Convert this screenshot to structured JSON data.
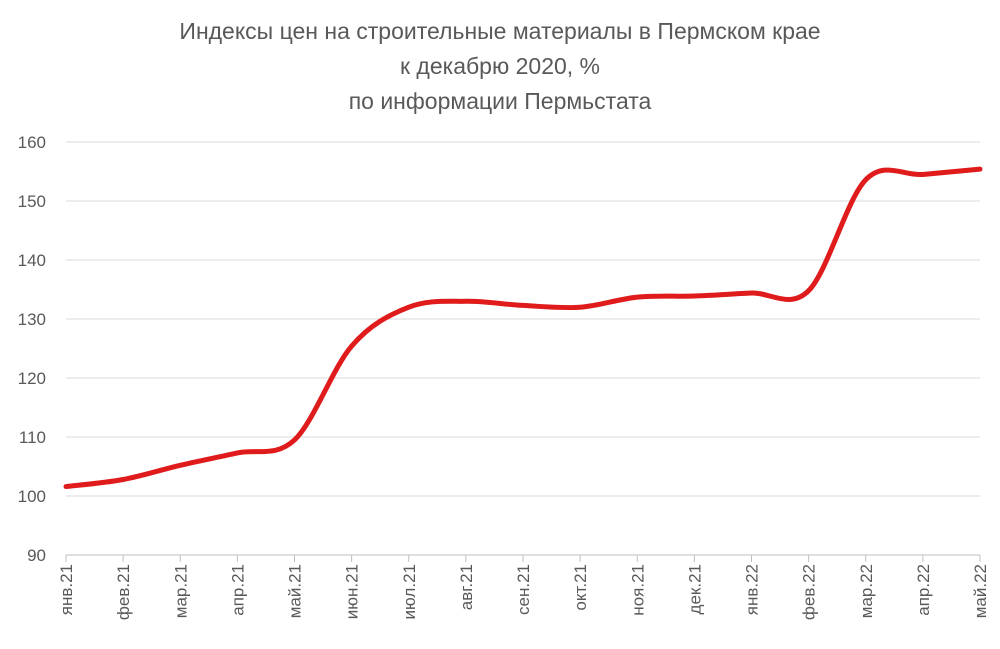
{
  "chart_data": {
    "type": "line",
    "title_lines": [
      "Индексы цен на строительные материалы в Пермском крае",
      "к декабрю 2020, %",
      "по информации Пермьстата"
    ],
    "xlabel": "",
    "ylabel": "",
    "categories": [
      "янв.21",
      "фев.21",
      "мар.21",
      "апр.21",
      "май.21",
      "июн.21",
      "июл.21",
      "авг.21",
      "сен.21",
      "окт.21",
      "ноя.21",
      "дек.21",
      "янв.22",
      "фев.22",
      "мар.22",
      "апр.22",
      "май.22"
    ],
    "series": [
      {
        "values": [
          101.6,
          102.8,
          105.2,
          107.3,
          109.5,
          125.4,
          132.0,
          133.0,
          132.3,
          132.0,
          133.7,
          133.9,
          134.4,
          134.8,
          153.6,
          154.5,
          155.4
        ]
      }
    ],
    "ylim": [
      90,
      160
    ],
    "yticks": [
      90,
      100,
      110,
      120,
      130,
      140,
      150,
      160
    ],
    "grid": true,
    "line_color": "#e01b1b",
    "grid_color": "#d9d9d9",
    "axis_color": "#bfbfbf"
  }
}
